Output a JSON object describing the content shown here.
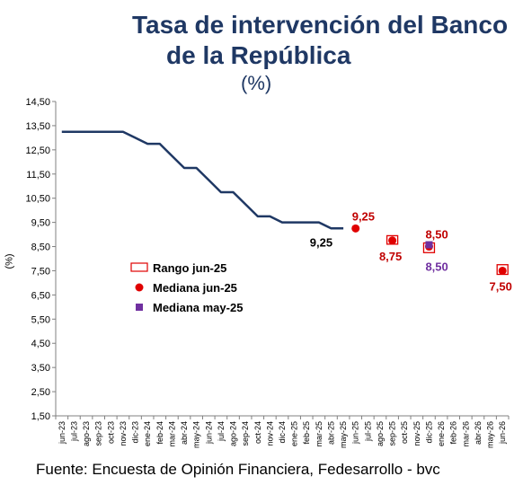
{
  "title_line1": "Tasa de intervención del Banco",
  "title_line2": "de la República",
  "subtitle": "(%)",
  "source": "Fuente: Encuesta de Opinión Financiera, Fedesarrollo - bvc",
  "colors": {
    "history_line": "#1f3864",
    "median_jun": "#e00000",
    "range_jun": "#e00000",
    "median_may": "#7030a0",
    "axis": "#808080",
    "label_red": "#c00000",
    "label_purple": "#7030a0",
    "label_black": "#000000"
  },
  "chart_data": {
    "type": "line",
    "ylabel": "(%)",
    "ylim": [
      1.5,
      14.5
    ],
    "yticks": [
      "14,50",
      "13,50",
      "12,50",
      "11,50",
      "10,50",
      "9,50",
      "8,50",
      "7,50",
      "6,50",
      "5,50",
      "4,50",
      "3,50",
      "2,50",
      "1,50"
    ],
    "categories": [
      "jun-23",
      "jul-23",
      "ago-23",
      "sep-23",
      "oct-23",
      "nov-23",
      "dic-23",
      "ene-24",
      "feb-24",
      "mar-24",
      "abr-24",
      "may-24",
      "jun-24",
      "jul-24",
      "ago-24",
      "sep-24",
      "oct-24",
      "nov-24",
      "dic-24",
      "ene-25",
      "feb-25",
      "mar-25",
      "abr-25",
      "may-25",
      "jun-25",
      "jul-25",
      "ago-25",
      "sep-25",
      "oct-25",
      "nov-25",
      "dic-25",
      "ene-26",
      "feb-26",
      "mar-26",
      "abr-26",
      "may-26",
      "jun-26"
    ],
    "series": [
      {
        "name": "",
        "kind": "line",
        "values": [
          13.25,
          13.25,
          13.25,
          13.25,
          13.25,
          13.25,
          13.0,
          12.75,
          12.75,
          12.25,
          11.75,
          11.75,
          11.25,
          10.75,
          10.75,
          10.25,
          9.75,
          9.75,
          9.5,
          9.5,
          9.5,
          9.5,
          9.25,
          9.25,
          null,
          null,
          null,
          null,
          null,
          null,
          null,
          null,
          null,
          null,
          null,
          null,
          null
        ]
      },
      {
        "name": "Rango jun-25",
        "kind": "range",
        "points": [
          {
            "category": "sep-25",
            "low": 8.6,
            "high": 8.95
          },
          {
            "category": "dic-25",
            "low": 8.25,
            "high": 8.65
          },
          {
            "category": "jun-26",
            "low": 7.35,
            "high": 7.75
          }
        ]
      },
      {
        "name": "Mediana jun-25",
        "kind": "marker",
        "points": [
          {
            "category": "jun-25",
            "value": 9.25
          },
          {
            "category": "sep-25",
            "value": 8.75
          },
          {
            "category": "dic-25",
            "value": 8.5
          },
          {
            "category": "jun-26",
            "value": 7.5
          }
        ]
      },
      {
        "name": "Mediana may-25",
        "kind": "marker",
        "points": [
          {
            "category": "dic-25",
            "value": 8.5
          }
        ]
      }
    ],
    "annotations": [
      {
        "text": "9,25",
        "category": "may-25",
        "value": 9.25,
        "color": "label_black",
        "pos": "below-left"
      },
      {
        "text": "9,25",
        "category": "jun-25",
        "value": 9.25,
        "color": "label_red",
        "pos": "above"
      },
      {
        "text": "8,75",
        "category": "sep-25",
        "value": 8.75,
        "color": "label_red",
        "pos": "below"
      },
      {
        "text": "8,50",
        "category": "dic-25",
        "value": 8.5,
        "color": "label_red",
        "pos": "above-right"
      },
      {
        "text": "8,50",
        "category": "dic-25",
        "value": 8.5,
        "color": "label_purple",
        "pos": "below-right"
      },
      {
        "text": "7,50",
        "category": "jun-26",
        "value": 7.5,
        "color": "label_red",
        "pos": "below"
      }
    ],
    "legend": {
      "placement": "center-left",
      "entries": [
        {
          "label": "Rango jun-25",
          "symbol": "range"
        },
        {
          "label": "Mediana jun-25",
          "symbol": "circle"
        },
        {
          "label": "Mediana may-25",
          "symbol": "square"
        }
      ]
    },
    "grid": false
  }
}
